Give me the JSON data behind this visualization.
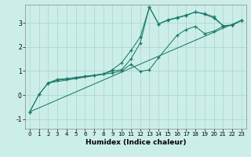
{
  "xlabel": "Humidex (Indice chaleur)",
  "background_color": "#cceee8",
  "grid_color": "#aad4ce",
  "line_color": "#1a7a6a",
  "xlim": [
    -0.5,
    23.5
  ],
  "ylim": [
    -1.4,
    3.75
  ],
  "yticks": [
    -1,
    0,
    1,
    2,
    3
  ],
  "xticks": [
    0,
    1,
    2,
    3,
    4,
    5,
    6,
    7,
    8,
    9,
    10,
    11,
    12,
    13,
    14,
    15,
    16,
    17,
    18,
    19,
    20,
    21,
    22,
    23
  ],
  "series1": [
    [
      0,
      -0.7
    ],
    [
      1,
      0.02
    ],
    [
      2,
      0.5
    ],
    [
      3,
      0.65
    ],
    [
      4,
      0.68
    ],
    [
      5,
      0.73
    ],
    [
      6,
      0.78
    ],
    [
      7,
      0.82
    ],
    [
      8,
      0.88
    ],
    [
      9,
      1.0
    ],
    [
      10,
      1.05
    ],
    [
      11,
      1.5
    ],
    [
      12,
      2.15
    ],
    [
      13,
      3.65
    ],
    [
      14,
      2.95
    ],
    [
      15,
      3.1
    ],
    [
      16,
      3.2
    ],
    [
      17,
      3.3
    ],
    [
      18,
      3.45
    ],
    [
      19,
      3.35
    ],
    [
      20,
      3.2
    ],
    [
      21,
      2.88
    ],
    [
      22,
      2.9
    ],
    [
      23,
      3.1
    ]
  ],
  "series2": [
    [
      2,
      0.5
    ],
    [
      3,
      0.62
    ],
    [
      4,
      0.66
    ],
    [
      5,
      0.72
    ],
    [
      6,
      0.77
    ],
    [
      7,
      0.82
    ],
    [
      8,
      0.87
    ],
    [
      9,
      1.05
    ],
    [
      10,
      1.35
    ],
    [
      11,
      1.85
    ],
    [
      12,
      2.4
    ],
    [
      13,
      3.65
    ],
    [
      14,
      2.95
    ],
    [
      15,
      3.12
    ],
    [
      16,
      3.22
    ],
    [
      17,
      3.32
    ],
    [
      18,
      3.45
    ],
    [
      19,
      3.38
    ],
    [
      20,
      3.25
    ],
    [
      21,
      2.88
    ],
    [
      22,
      2.9
    ],
    [
      23,
      3.1
    ]
  ],
  "series3": [
    [
      0,
      -0.7
    ],
    [
      1,
      0.02
    ],
    [
      2,
      0.5
    ],
    [
      9,
      0.92
    ],
    [
      10,
      1.0
    ],
    [
      11,
      1.28
    ],
    [
      12,
      0.98
    ],
    [
      13,
      1.05
    ],
    [
      14,
      1.55
    ],
    [
      16,
      2.48
    ],
    [
      17,
      2.72
    ],
    [
      18,
      2.85
    ],
    [
      19,
      2.55
    ],
    [
      20,
      2.65
    ],
    [
      21,
      2.85
    ],
    [
      22,
      2.9
    ],
    [
      23,
      3.1
    ]
  ],
  "series4_x": [
    0,
    23
  ],
  "series4_y": [
    -0.7,
    3.1
  ]
}
